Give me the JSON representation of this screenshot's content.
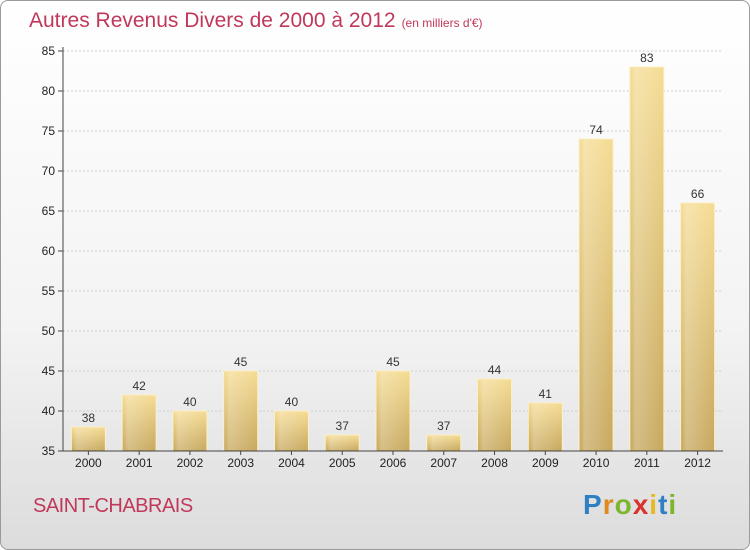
{
  "chart_data": {
    "type": "bar",
    "title": "Autres Revenus Divers de 2000 à 2012",
    "subtitle": "(en milliers d'€)",
    "categories": [
      "2000",
      "2001",
      "2002",
      "2003",
      "2004",
      "2005",
      "2006",
      "2007",
      "2008",
      "2009",
      "2010",
      "2011",
      "2012"
    ],
    "values": [
      38,
      42,
      40,
      45,
      40,
      37,
      45,
      37,
      44,
      41,
      74,
      83,
      66
    ],
    "ylim": [
      35,
      85
    ],
    "yticks": [
      35,
      40,
      45,
      50,
      55,
      60,
      65,
      70,
      75,
      80,
      85
    ],
    "grid": true,
    "xlabel": "",
    "ylabel": ""
  },
  "place": "SAINT-CHABRAIS",
  "brand": {
    "letters": [
      "P",
      "r",
      "o",
      "x",
      "i",
      "t",
      "i"
    ],
    "colors": [
      "#2f7fc3",
      "#e08a1e",
      "#7db52f",
      "#d9332c",
      "#e8b81f",
      "#2f7fc3",
      "#7db52f"
    ]
  },
  "colors": {
    "bar_top": "#f5dc94",
    "bar_bottom": "#c7a85e",
    "bar_highlight": "#fbf0c8",
    "grid": "#cfcfcf",
    "title": "#c0385a"
  }
}
